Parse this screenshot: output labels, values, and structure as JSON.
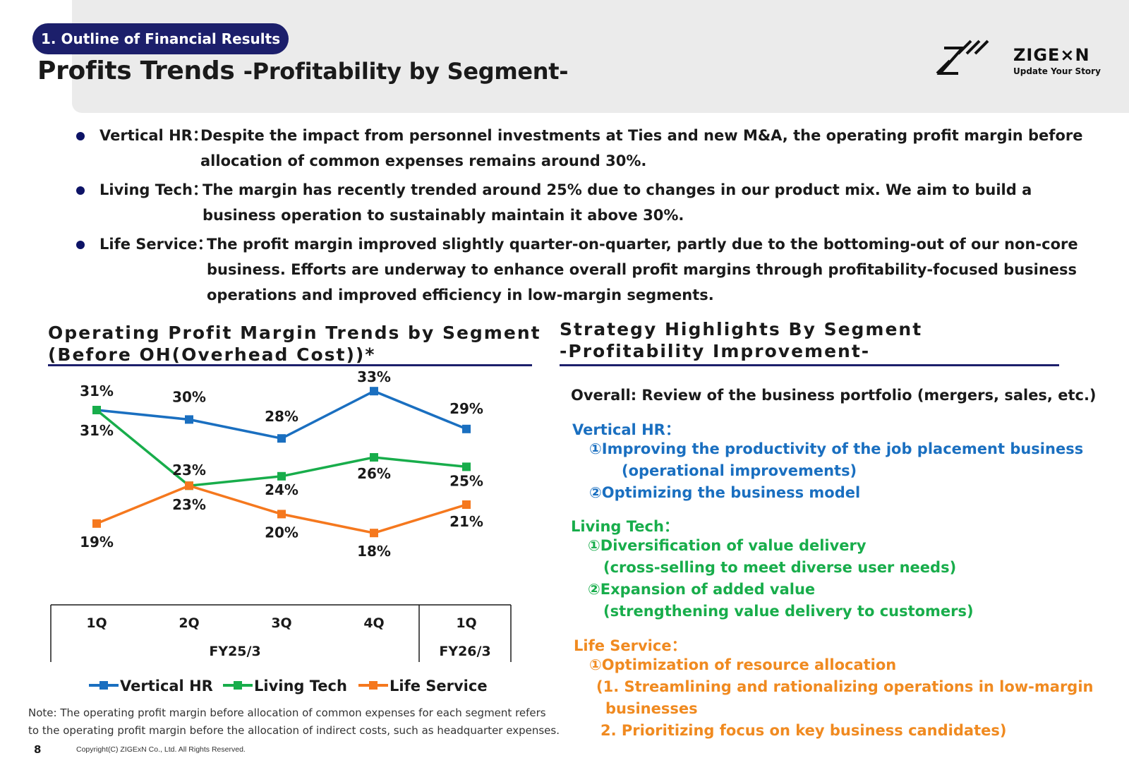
{
  "header": {
    "section_pill": "1. Outline of Financial Results",
    "title_main": "Profits Trends ",
    "title_sub": "-Profitability by Segment-",
    "logo_word": "ZIGE×N",
    "logo_tagline": "Update Your Story"
  },
  "bullets": [
    {
      "label": "Vertical HR：",
      "text": "Despite the impact from personnel investments at Ties and new M&A, the operating profit margin before\nallocation of common expenses remains around 30%."
    },
    {
      "label": "Living Tech：",
      "text": "The margin has recently trended around 25% due to changes in our product mix. We aim to build a\nbusiness operation to sustainably maintain it above 30%."
    },
    {
      "label": "Life Service：",
      "text": "The profit margin improved slightly quarter-on-quarter, partly due to the bottoming-out of our non-core\nbusiness. Efforts are underway to enhance overall profit margins through profitability-focused business\noperations and improved efficiency in low-margin segments."
    }
  ],
  "chart_section_title": "Operating Profit Margin Trends by Segment\n(Before OH(Overhead Cost))*",
  "strategy_section_title": "Strategy Highlights By Segment\n-Profitability Improvement-",
  "chart_data": {
    "type": "line",
    "categories": [
      "1Q",
      "2Q",
      "3Q",
      "4Q",
      "1Q"
    ],
    "fiscal_years": [
      {
        "label": "FY25/3",
        "span": 4
      },
      {
        "label": "FY26/3",
        "span": 1
      }
    ],
    "series": [
      {
        "name": "Vertical HR",
        "color": "#1a6fc0",
        "values": [
          31,
          30,
          28,
          33,
          29
        ],
        "labels": [
          "31%",
          "30%",
          "28%",
          "33%",
          "29%"
        ]
      },
      {
        "name": "Living Tech",
        "color": "#18ad4b",
        "values": [
          31,
          23,
          24,
          26,
          25
        ],
        "labels": [
          "31%",
          "23%",
          "24%",
          "26%",
          "25%"
        ]
      },
      {
        "name": "Life Service",
        "color": "#f5781e",
        "values": [
          19,
          23,
          20,
          18,
          21
        ],
        "labels": [
          "19%",
          "23%",
          "20%",
          "18%",
          "21%"
        ]
      }
    ],
    "legend_position": "bottom",
    "grid": false
  },
  "strategy": {
    "overall": "Overall: Review of the business portfolio (mergers, sales, etc.)",
    "vertical_hr": {
      "heading": "Vertical HR：",
      "lines": [
        "①Improving the productivity of the job placement business",
        "(operational improvements)",
        "②Optimizing the business model"
      ]
    },
    "living_tech": {
      "heading": "Living Tech：",
      "lines": [
        "①Diversification of value delivery",
        "(cross-selling to meet diverse user needs)",
        "②Expansion of added value",
        "(strengthening value delivery to customers)"
      ]
    },
    "life_service": {
      "heading": "Life Service：",
      "lines": [
        "①Optimization of resource allocation",
        "(1. Streamlining and rationalizing operations in low-margin",
        "businesses",
        "2. Prioritizing focus on key business candidates)"
      ]
    }
  },
  "note": "Note: The operating profit margin before allocation of common expenses for each segment refers\nto the operating profit margin before the allocation of indirect costs, such as headquarter expenses.",
  "footer": {
    "page_number": "8",
    "copyright": "Copyright(C)  ZIGExN Co., Ltd. All Rights Reserved."
  }
}
